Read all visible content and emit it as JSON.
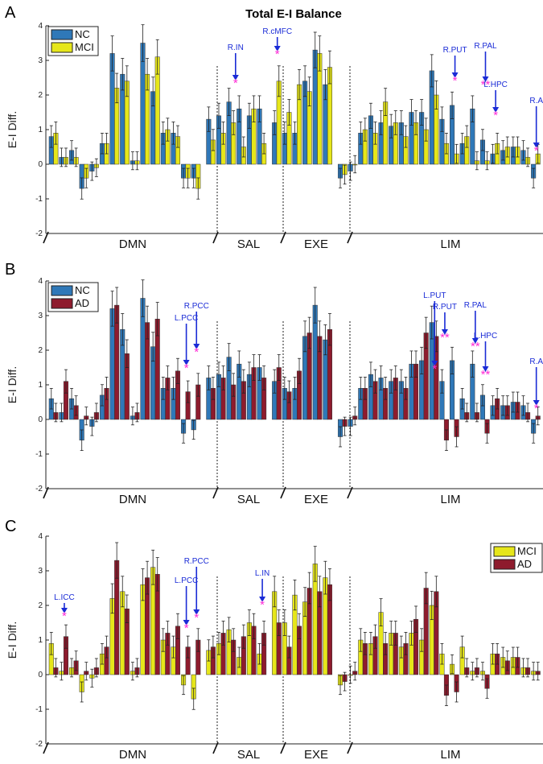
{
  "title": "Total E-I Balance",
  "colors": {
    "NC": "#2f78b8",
    "MCI": "#e6e61a",
    "AD": "#8e1b2d",
    "annotation": "#1a2bd6",
    "star": "#ff2bd6"
  },
  "chart_data": [
    {
      "type": "bar",
      "panel": "A",
      "ylabel": "E-I Diff.",
      "ylim": [
        -2,
        4
      ],
      "yticks": [
        "-2",
        "-1",
        "0",
        "1",
        "2",
        "3",
        "4"
      ],
      "legend": [
        "NC",
        "MCI"
      ],
      "legend_position": "top-left",
      "groups": [
        "DMN",
        "SAL",
        "EXE",
        "LIM"
      ],
      "annotations": [
        {
          "label": "R.IN",
          "stars": "*"
        },
        {
          "label": "R.cMFC",
          "stars": "*"
        },
        {
          "label": "R.PUT",
          "stars": "*"
        },
        {
          "label": "R.PAL",
          "stars": "**"
        },
        {
          "label": "L.HPC",
          "stars": "*"
        },
        {
          "label": "R.A",
          "stars": "*"
        }
      ],
      "series": [
        {
          "name": "NC",
          "values": [
            0.8,
            0.2,
            0.4,
            -0.7,
            -0.2,
            0.6,
            3.2,
            2.6,
            0.1,
            3.5,
            2.1,
            0.9,
            0.9,
            -0.4,
            -0.4,
            1.3,
            1.4,
            1.8,
            1.6,
            1.4,
            1.6,
            1.2,
            0.9,
            0.9,
            2.4,
            3.3,
            2.3,
            -0.4,
            -0.2,
            0.9,
            1.4,
            1.2,
            1.1,
            1.2,
            1.5,
            1.5,
            2.7,
            1.3,
            1.7,
            0.6,
            1.6,
            0.7,
            0.3,
            0.4,
            0.5,
            0.4,
            -0.4
          ]
        },
        {
          "name": "MCI",
          "values": [
            0.9,
            0.2,
            0.2,
            -0.4,
            -0.1,
            0.6,
            2.2,
            2.4,
            0.1,
            2.6,
            3.1,
            1.0,
            0.8,
            -0.4,
            -0.7,
            0.7,
            0.9,
            1.2,
            0.5,
            1.6,
            0.6,
            2.4,
            1.5,
            2.3,
            2.1,
            3.2,
            2.8,
            -0.3,
            0.0,
            1.0,
            0.9,
            1.8,
            1.2,
            0.8,
            1.2,
            1.0,
            2.0,
            0.6,
            0.3,
            0.8,
            0.1,
            0.1,
            0.6,
            0.5,
            0.5,
            0.2,
            0.3
          ]
        }
      ]
    },
    {
      "type": "bar",
      "panel": "B",
      "ylabel": "E-I Diff.",
      "ylim": [
        -2,
        4
      ],
      "yticks": [
        "-2",
        "-1",
        "0",
        "1",
        "2",
        "3",
        "4"
      ],
      "legend": [
        "NC",
        "AD"
      ],
      "legend_position": "top-left",
      "groups": [
        "DMN",
        "SAL",
        "EXE",
        "LIM"
      ],
      "annotations": [
        {
          "label": "L.PCC",
          "stars": "*"
        },
        {
          "label": "R.PCC",
          "stars": "*"
        },
        {
          "label": "L.PUT",
          "stars": "*"
        },
        {
          "label": "R.PUT",
          "stars": "**"
        },
        {
          "label": "R.PAL",
          "stars": "**"
        },
        {
          "label": "L.HPC",
          "stars": "**"
        },
        {
          "label": "R.A",
          "stars": "*"
        }
      ],
      "series": [
        {
          "name": "NC",
          "values": [
            0.6,
            0.2,
            0.6,
            -0.6,
            -0.2,
            0.7,
            3.2,
            2.6,
            0.1,
            3.5,
            2.1,
            0.9,
            0.9,
            -0.4,
            -0.3,
            1.2,
            1.3,
            1.8,
            1.6,
            1.3,
            1.5,
            1.1,
            0.9,
            0.9,
            2.4,
            3.3,
            2.3,
            -0.5,
            -0.2,
            0.9,
            1.3,
            1.2,
            1.1,
            1.1,
            1.6,
            1.7,
            2.8,
            1.1,
            1.7,
            0.6,
            1.6,
            0.7,
            0.4,
            0.4,
            0.5,
            0.4,
            -0.4
          ]
        },
        {
          "name": "AD",
          "values": [
            0.2,
            1.1,
            0.4,
            0.1,
            0.2,
            0.9,
            3.3,
            1.9,
            0.2,
            2.8,
            2.9,
            1.2,
            1.4,
            0.8,
            1.0,
            0.9,
            1.2,
            1.0,
            1.1,
            1.5,
            1.2,
            1.5,
            0.8,
            1.4,
            2.5,
            2.4,
            2.6,
            -0.2,
            0.1,
            0.9,
            1.1,
            0.9,
            1.2,
            0.9,
            1.6,
            2.5,
            2.4,
            -0.6,
            -0.5,
            0.2,
            0.2,
            -0.4,
            0.6,
            0.4,
            0.5,
            0.2,
            0.1
          ]
        }
      ]
    },
    {
      "type": "bar",
      "panel": "C",
      "ylabel": "E-I Diff.",
      "ylim": [
        -2,
        4
      ],
      "yticks": [
        "-2",
        "-1",
        "0",
        "1",
        "2",
        "3",
        "4"
      ],
      "legend": [
        "MCI",
        "AD"
      ],
      "legend_position": "top-right",
      "groups": [
        "DMN",
        "SAL",
        "EXE",
        "LIM"
      ],
      "annotations": [
        {
          "label": "L.ICC",
          "stars": "*"
        },
        {
          "label": "L.PCC",
          "stars": "*"
        },
        {
          "label": "R.PCC",
          "stars": "*"
        },
        {
          "label": "L.IN",
          "stars": "*"
        }
      ],
      "series": [
        {
          "name": "MCI",
          "values": [
            0.9,
            0.1,
            0.2,
            -0.5,
            -0.1,
            0.6,
            2.2,
            2.4,
            0.1,
            2.6,
            3.1,
            1.0,
            0.8,
            -0.3,
            -0.7,
            0.7,
            0.9,
            1.3,
            0.5,
            1.5,
            0.6,
            2.4,
            1.5,
            2.3,
            2.1,
            3.2,
            2.8,
            -0.3,
            0.0,
            1.0,
            0.9,
            1.8,
            1.2,
            0.8,
            1.2,
            1.0,
            2.0,
            0.6,
            0.3,
            0.8,
            0.1,
            0.1,
            0.6,
            0.5,
            0.5,
            0.2,
            0.1
          ]
        },
        {
          "name": "AD",
          "values": [
            0.2,
            1.1,
            0.4,
            0.1,
            0.2,
            0.8,
            3.3,
            1.9,
            0.2,
            2.8,
            2.9,
            1.2,
            1.4,
            0.8,
            1.0,
            0.8,
            1.2,
            1.0,
            1.1,
            1.4,
            1.2,
            1.5,
            0.8,
            1.4,
            2.5,
            2.4,
            2.6,
            -0.2,
            0.1,
            0.9,
            1.1,
            0.9,
            1.2,
            0.9,
            1.6,
            2.5,
            2.4,
            -0.6,
            -0.5,
            0.2,
            0.2,
            -0.4,
            0.6,
            0.4,
            0.5,
            0.2,
            0.1
          ]
        }
      ]
    }
  ]
}
